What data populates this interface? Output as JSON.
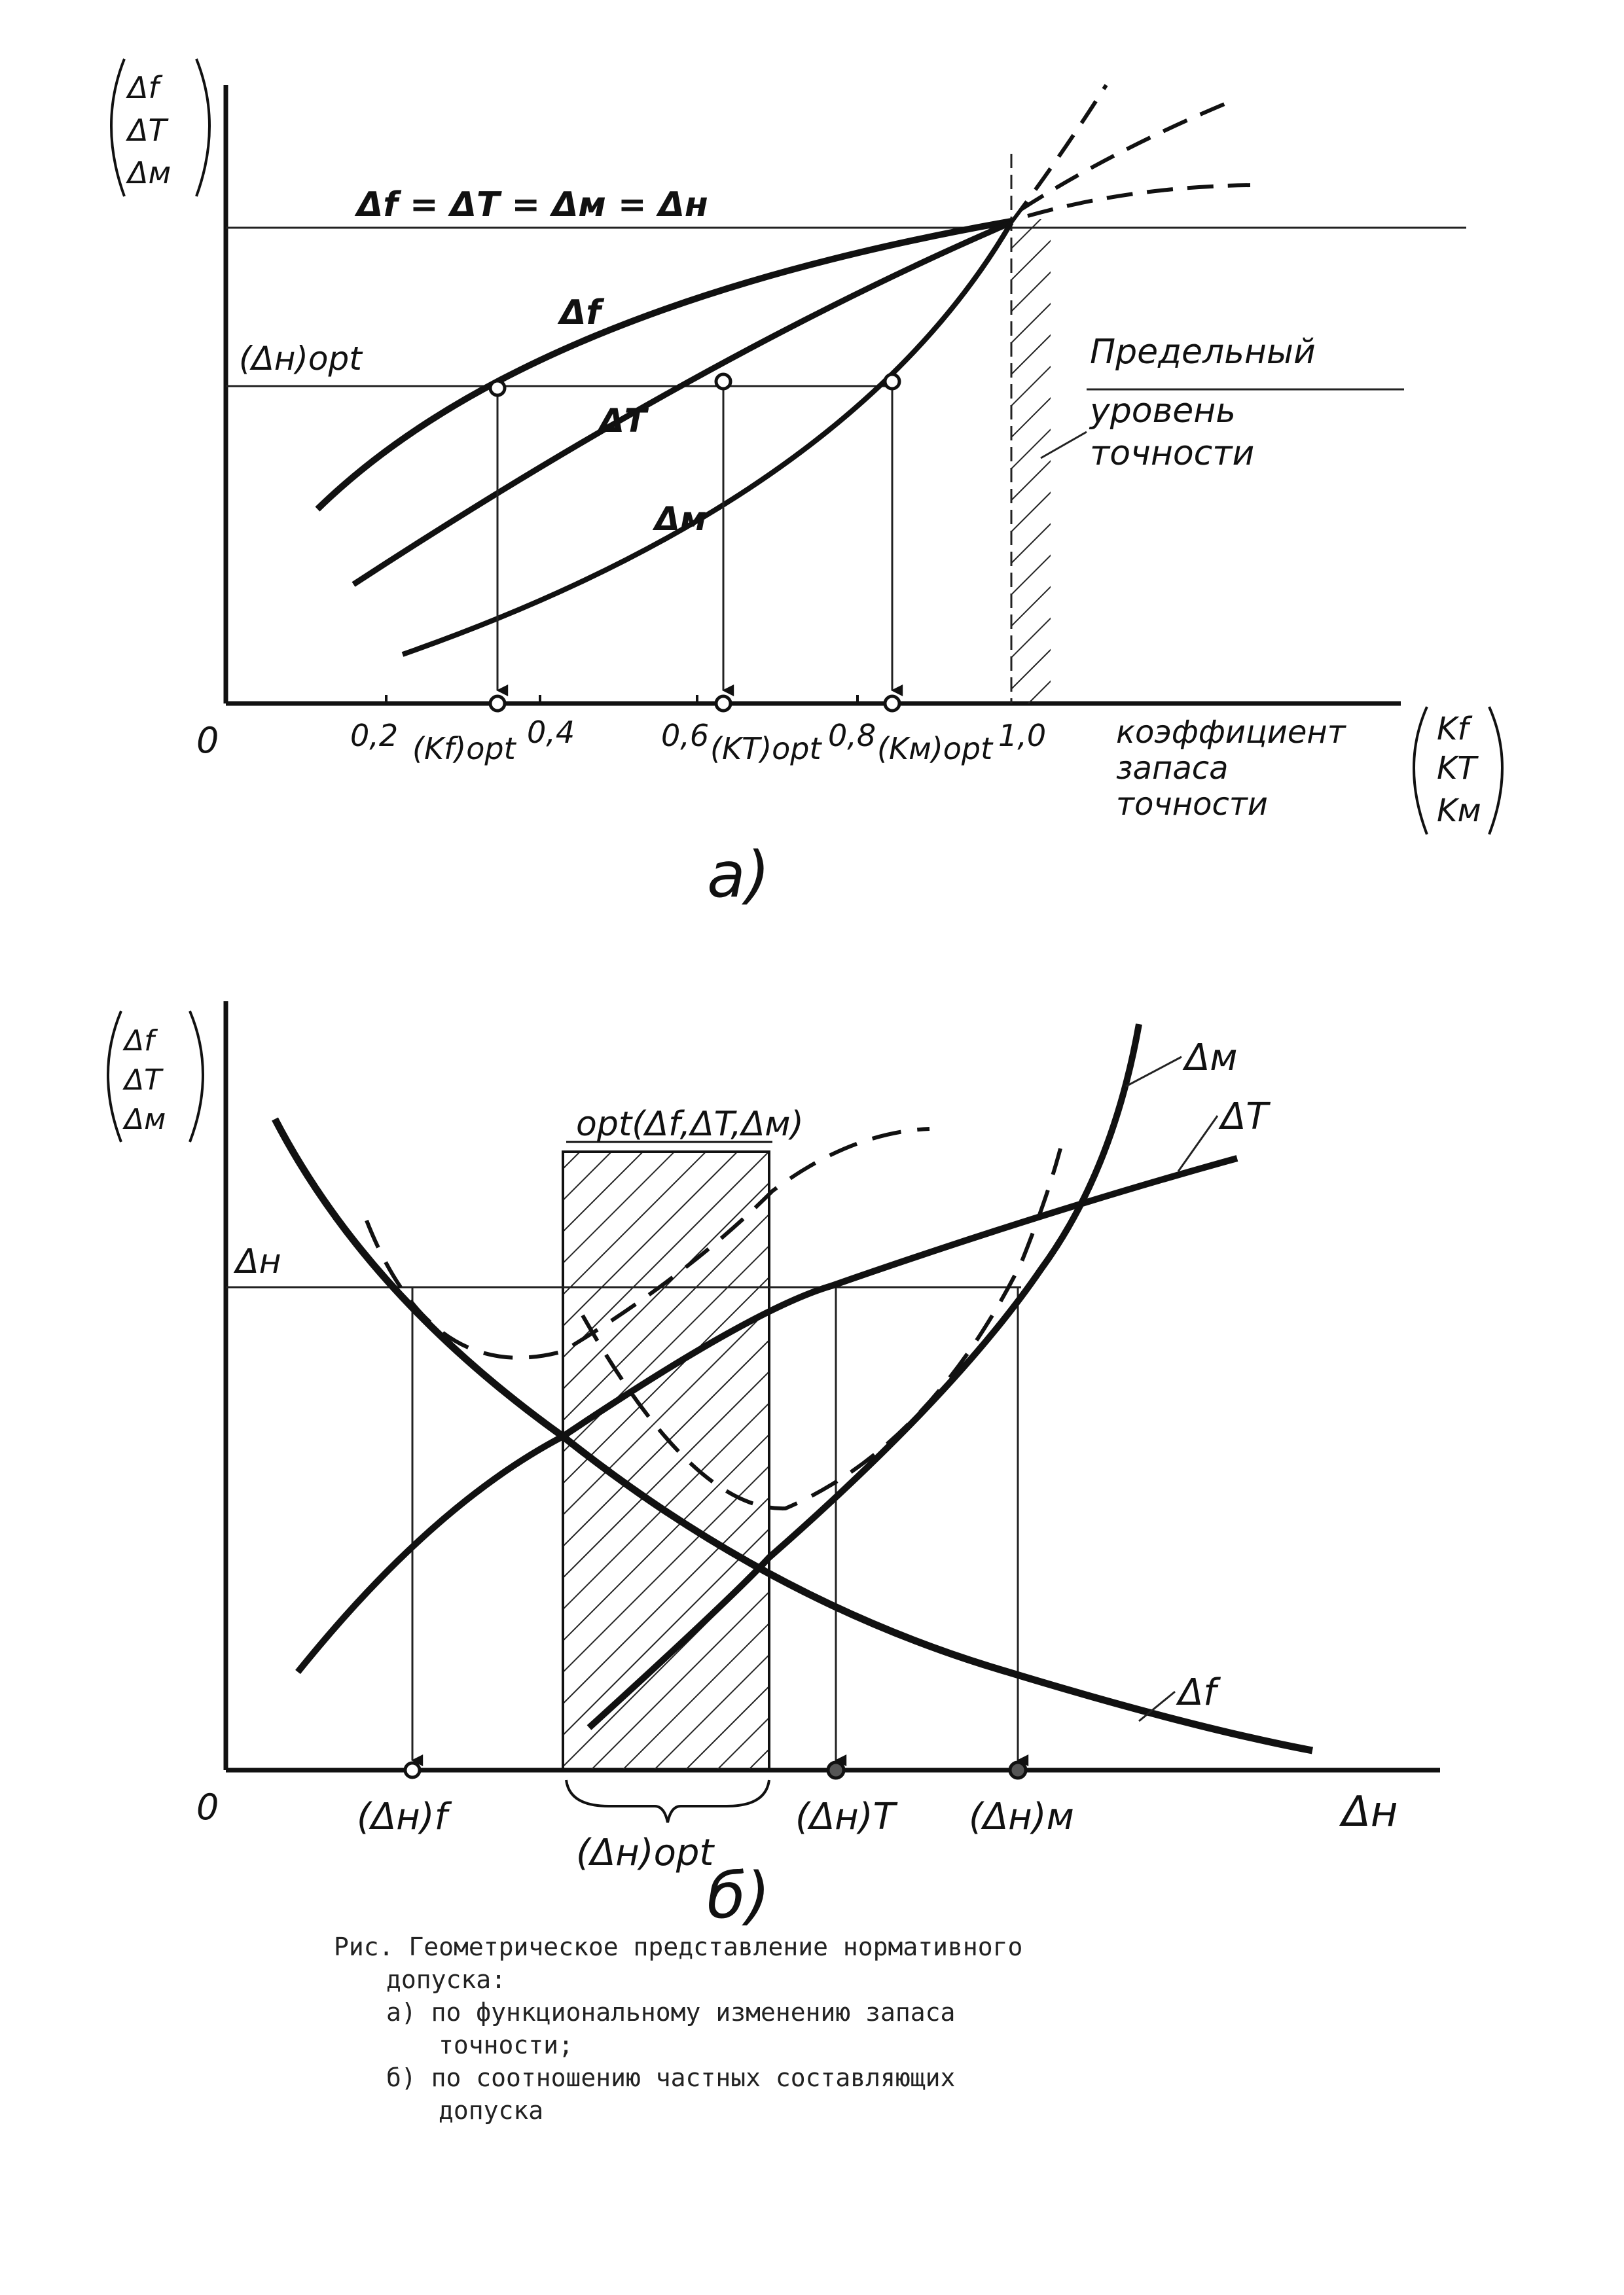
{
  "panel_a": {
    "y_axis_label": [
      "Δf",
      "ΔT",
      "Δм"
    ],
    "equality_label": "Δf = ΔT = Δм = Δн",
    "opt_level_label": "(Δн)opt",
    "curve_f_label": "Δf",
    "curve_t_label": "ΔT",
    "curve_m_label": "Δм",
    "limit_label": [
      "Предельный",
      "уровень",
      "точности"
    ],
    "origin": "0",
    "tick_02": "0,2",
    "tick_kf": "(Kf)opt",
    "tick_04": "0,4",
    "tick_06": "0,6",
    "tick_kt": "(KT)opt",
    "tick_08": "0,8",
    "tick_km": "(Kм)opt",
    "tick_10": "1,0",
    "x_axis_label": [
      "коэффициент",
      "запаса",
      "точности"
    ],
    "x_axis_vars": [
      "Kf",
      "KT",
      "Kм"
    ],
    "panel_letter": "а)"
  },
  "panel_b": {
    "y_axis_label": [
      "Δf",
      "ΔT",
      "Δм"
    ],
    "opt_band_label": "opt(Δf,ΔT,Δм)",
    "level_label": "Δн",
    "curve_m_label": "Δм",
    "curve_t_label": "ΔT",
    "curve_f_label": "Δf",
    "origin": "0",
    "tick_hf": "(Δн)f",
    "tick_opt": "(Δн)opt",
    "tick_ht": "(Δн)T",
    "tick_hm": "(Δн)м",
    "x_axis_label": "Δн",
    "panel_letter": "б)"
  },
  "caption": {
    "line1": "Рис. Геометрическое представление нормативного",
    "line2": "допуска:",
    "item_a_1": "а) по функциональному изменению запаса",
    "item_a_2": "точности;",
    "item_b_1": "б) по соотношению частных составляющих",
    "item_b_2": "допуска"
  }
}
